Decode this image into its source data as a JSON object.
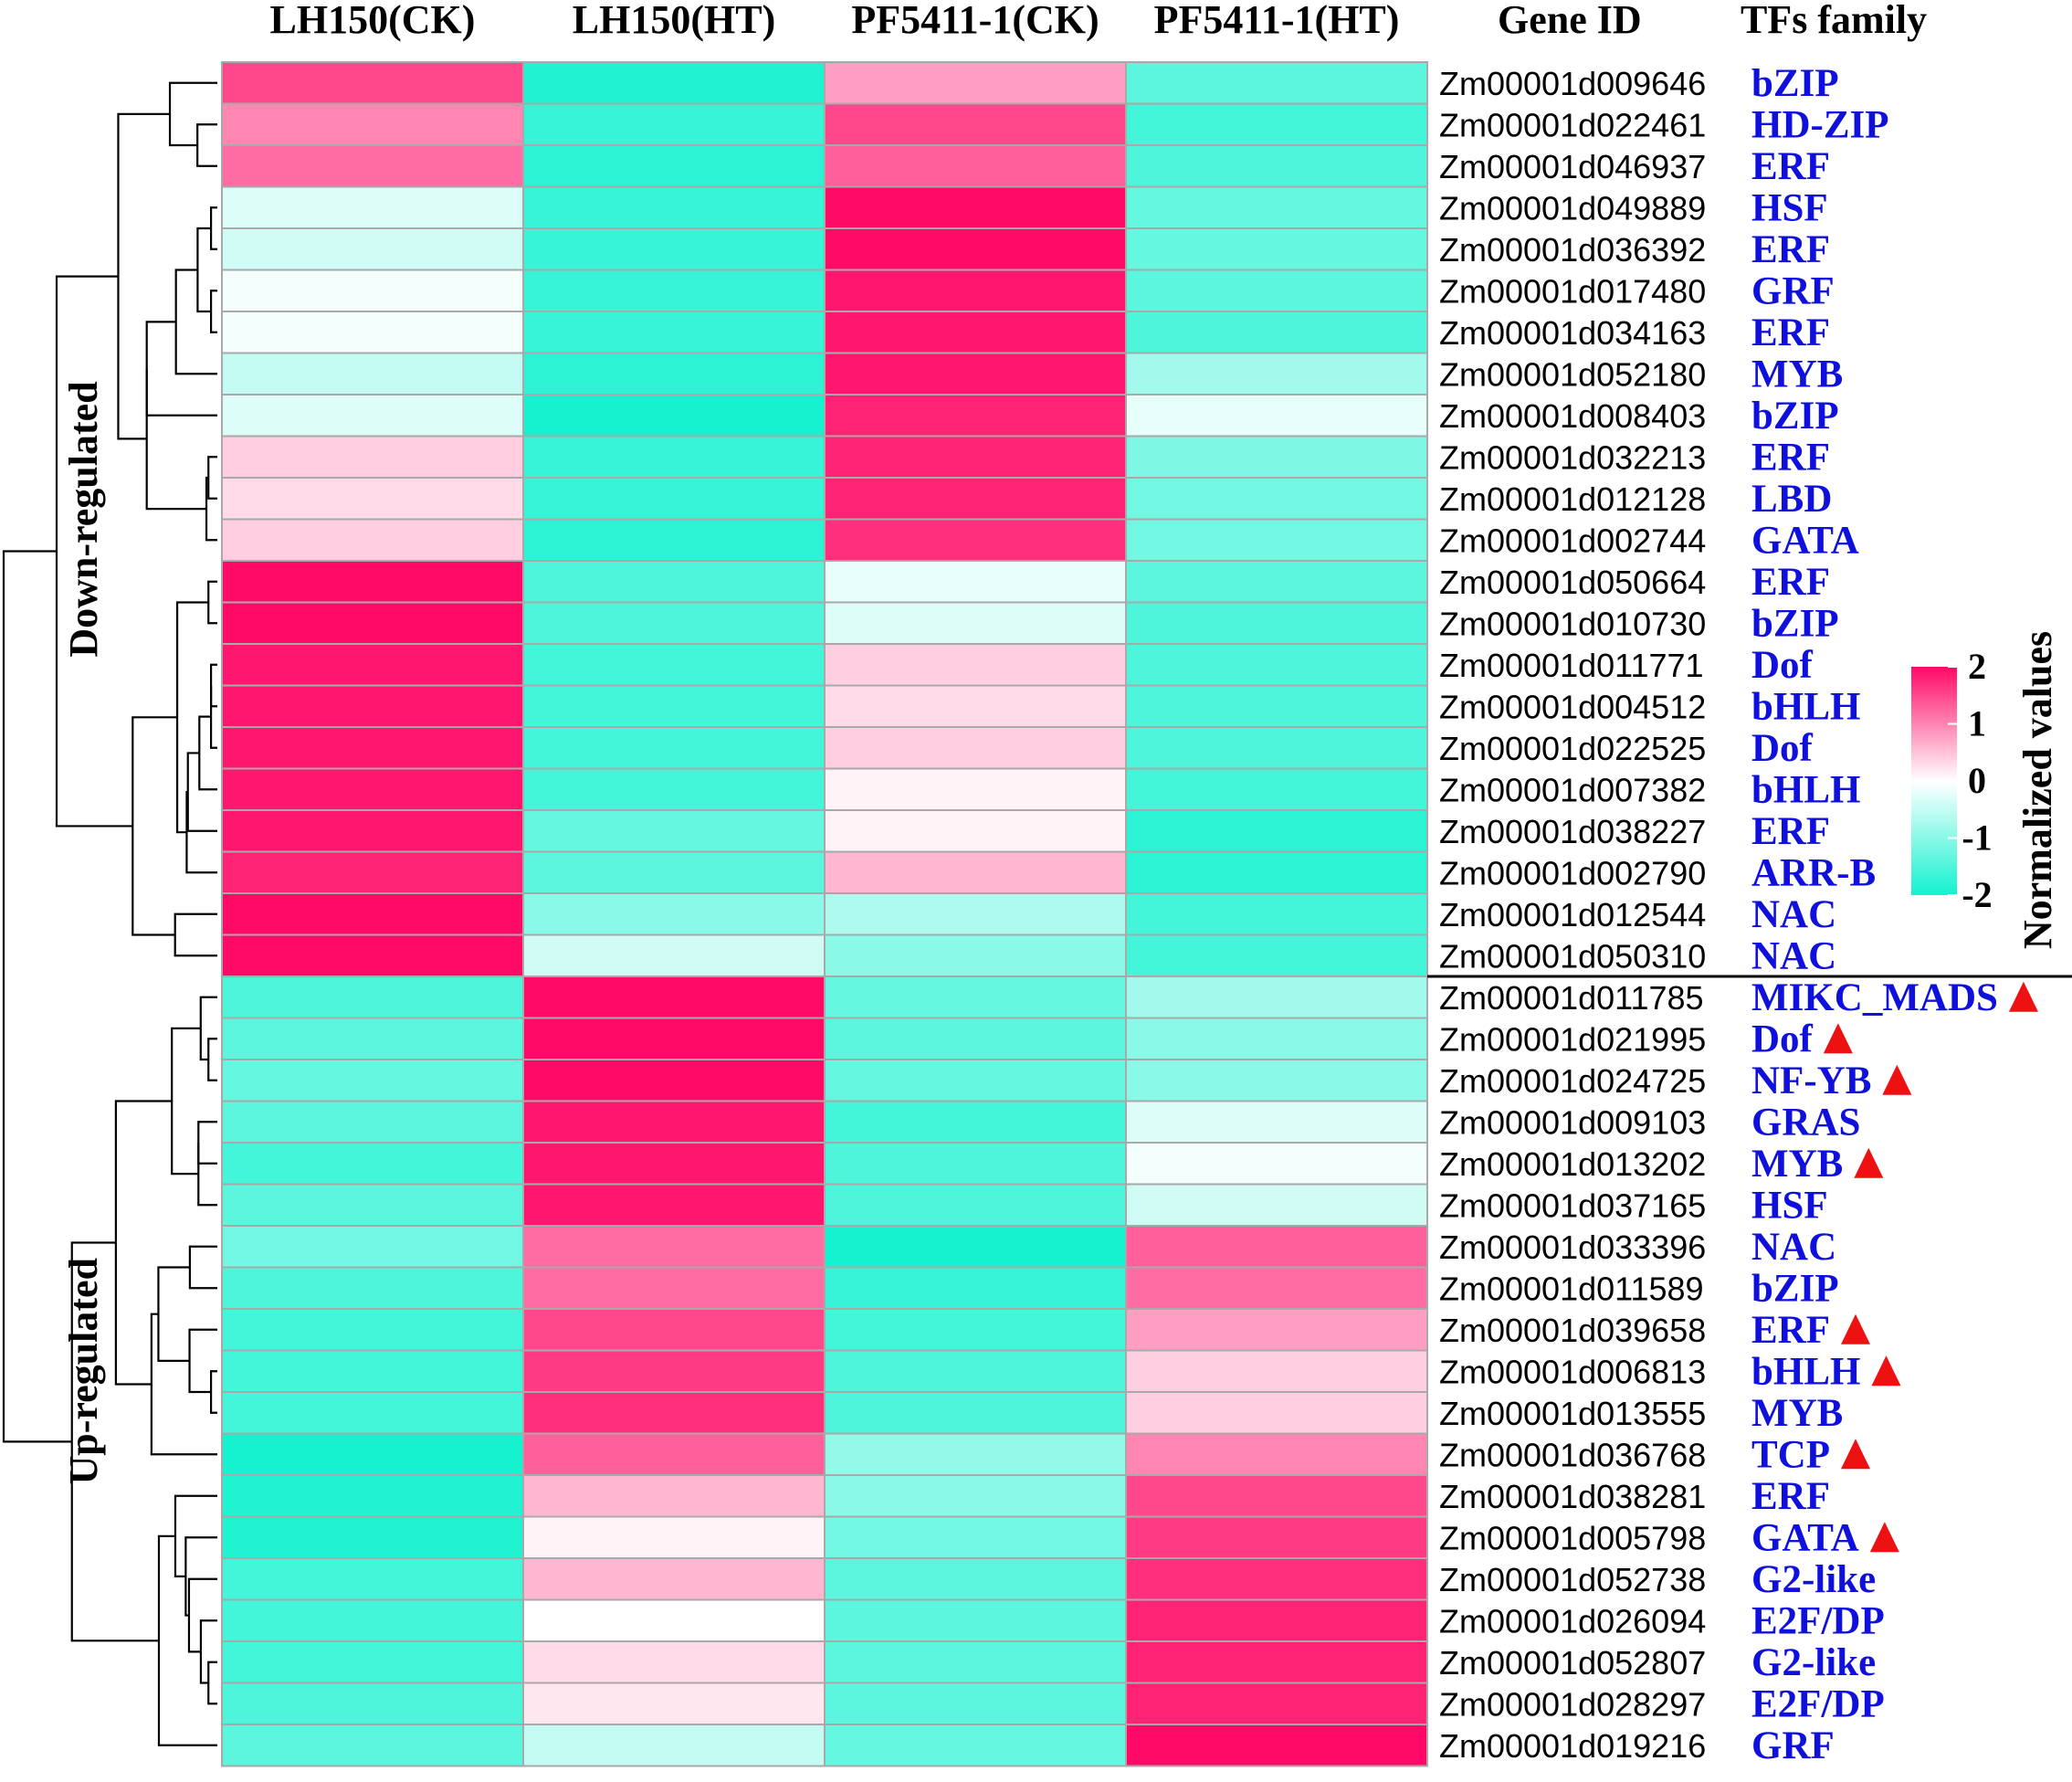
{
  "chart_data": {
    "type": "heatmap",
    "columns": [
      "LH150(CK)",
      "LH150(HT)",
      "PF5411-1(CK)",
      "PF5411-1(HT)"
    ],
    "gene_id_header": "Gene ID",
    "family_header": "TFs family",
    "groups": [
      {
        "label": "Down-regulated",
        "start": 0,
        "end": 21
      },
      {
        "label": "Up-regulated",
        "start": 22,
        "end": 40
      }
    ],
    "rows": [
      {
        "gene": "Zm00001d009646",
        "family": "bZIP",
        "marked": false,
        "values": [
          1.5,
          -1.9,
          0.8,
          -1.4
        ]
      },
      {
        "gene": "Zm00001d022461",
        "family": "HD-ZIP",
        "marked": false,
        "values": [
          1.0,
          -1.7,
          1.5,
          -1.6
        ]
      },
      {
        "gene": "Zm00001d046937",
        "family": "ERF",
        "marked": false,
        "values": [
          1.2,
          -1.8,
          1.3,
          -1.5
        ]
      },
      {
        "gene": "Zm00001d049889",
        "family": "HSF",
        "marked": false,
        "values": [
          -0.3,
          -1.7,
          2.0,
          -1.3
        ]
      },
      {
        "gene": "Zm00001d036392",
        "family": "ERF",
        "marked": false,
        "values": [
          -0.4,
          -1.7,
          2.0,
          -1.3
        ]
      },
      {
        "gene": "Zm00001d017480",
        "family": "GRF",
        "marked": false,
        "values": [
          -0.1,
          -1.7,
          1.9,
          -1.4
        ]
      },
      {
        "gene": "Zm00001d034163",
        "family": "ERF",
        "marked": false,
        "values": [
          -0.1,
          -1.7,
          1.9,
          -1.5
        ]
      },
      {
        "gene": "Zm00001d052180",
        "family": "MYB",
        "marked": false,
        "values": [
          -0.5,
          -1.8,
          1.9,
          -0.8
        ]
      },
      {
        "gene": "Zm00001d008403",
        "family": "bZIP",
        "marked": false,
        "values": [
          -0.3,
          -2.0,
          1.8,
          -0.2
        ]
      },
      {
        "gene": "Zm00001d032213",
        "family": "ERF",
        "marked": false,
        "values": [
          0.4,
          -1.7,
          1.8,
          -1.1
        ]
      },
      {
        "gene": "Zm00001d012128",
        "family": "LBD",
        "marked": false,
        "values": [
          0.3,
          -1.7,
          1.8,
          -1.2
        ]
      },
      {
        "gene": "Zm00001d002744",
        "family": "GATA",
        "marked": false,
        "values": [
          0.4,
          -1.8,
          1.7,
          -1.2
        ]
      },
      {
        "gene": "Zm00001d050664",
        "family": "ERF",
        "marked": false,
        "values": [
          2.0,
          -1.5,
          -0.2,
          -1.4
        ]
      },
      {
        "gene": "Zm00001d010730",
        "family": "bZIP",
        "marked": false,
        "values": [
          2.0,
          -1.5,
          -0.3,
          -1.5
        ]
      },
      {
        "gene": "Zm00001d011771",
        "family": "Dof",
        "marked": false,
        "values": [
          1.9,
          -1.6,
          0.4,
          -1.5
        ]
      },
      {
        "gene": "Zm00001d004512",
        "family": "bHLH",
        "marked": false,
        "values": [
          1.9,
          -1.6,
          0.3,
          -1.5
        ]
      },
      {
        "gene": "Zm00001d022525",
        "family": "Dof",
        "marked": false,
        "values": [
          1.9,
          -1.6,
          0.4,
          -1.5
        ]
      },
      {
        "gene": "Zm00001d007382",
        "family": "bHLH",
        "marked": false,
        "values": [
          1.9,
          -1.6,
          0.1,
          -1.6
        ]
      },
      {
        "gene": "Zm00001d038227",
        "family": "ERF",
        "marked": false,
        "values": [
          1.9,
          -1.3,
          0.1,
          -1.8
        ]
      },
      {
        "gene": "Zm00001d002790",
        "family": "ARR-B",
        "marked": false,
        "values": [
          1.8,
          -1.4,
          0.6,
          -1.8
        ]
      },
      {
        "gene": "Zm00001d012544",
        "family": "NAC",
        "marked": false,
        "values": [
          2.0,
          -1.0,
          -0.7,
          -1.6
        ]
      },
      {
        "gene": "Zm00001d050310",
        "family": "NAC",
        "marked": false,
        "values": [
          2.0,
          -0.4,
          -1.0,
          -1.6
        ]
      },
      {
        "gene": "Zm00001d011785",
        "family": "MIKC_MADS",
        "marked": true,
        "values": [
          -1.5,
          2.0,
          -1.3,
          -0.8
        ]
      },
      {
        "gene": "Zm00001d021995",
        "family": "Dof",
        "marked": true,
        "values": [
          -1.4,
          2.0,
          -1.4,
          -1.0
        ]
      },
      {
        "gene": "Zm00001d024725",
        "family": "NF-YB",
        "marked": true,
        "values": [
          -1.3,
          2.0,
          -1.3,
          -1.0
        ]
      },
      {
        "gene": "Zm00001d009103",
        "family": "GRAS",
        "marked": false,
        "values": [
          -1.4,
          1.9,
          -1.6,
          -0.3
        ]
      },
      {
        "gene": "Zm00001d013202",
        "family": "MYB",
        "marked": true,
        "values": [
          -1.6,
          1.9,
          -1.5,
          -0.1
        ]
      },
      {
        "gene": "Zm00001d037165",
        "family": "HSF",
        "marked": false,
        "values": [
          -1.4,
          1.9,
          -1.5,
          -0.4
        ]
      },
      {
        "gene": "Zm00001d033396",
        "family": "NAC",
        "marked": false,
        "values": [
          -1.2,
          1.2,
          -2.0,
          1.3
        ]
      },
      {
        "gene": "Zm00001d011589",
        "family": "bZIP",
        "marked": false,
        "values": [
          -1.5,
          1.2,
          -1.7,
          1.2
        ]
      },
      {
        "gene": "Zm00001d039658",
        "family": "ERF",
        "marked": true,
        "values": [
          -1.6,
          1.5,
          -1.6,
          0.8
        ]
      },
      {
        "gene": "Zm00001d006813",
        "family": "bHLH",
        "marked": true,
        "values": [
          -1.6,
          1.6,
          -1.5,
          0.4
        ]
      },
      {
        "gene": "Zm00001d013555",
        "family": "MYB",
        "marked": false,
        "values": [
          -1.6,
          1.7,
          -1.5,
          0.4
        ]
      },
      {
        "gene": "Zm00001d036768",
        "family": "TCP",
        "marked": true,
        "values": [
          -2.0,
          1.3,
          -0.9,
          1.0
        ]
      },
      {
        "gene": "Zm00001d038281",
        "family": "ERF",
        "marked": false,
        "values": [
          -1.9,
          0.6,
          -1.0,
          1.5
        ]
      },
      {
        "gene": "Zm00001d005798",
        "family": "GATA",
        "marked": true,
        "values": [
          -1.9,
          0.1,
          -1.2,
          1.6
        ]
      },
      {
        "gene": "Zm00001d052738",
        "family": "G2-like",
        "marked": false,
        "values": [
          -1.6,
          0.6,
          -1.4,
          1.7
        ]
      },
      {
        "gene": "Zm00001d026094",
        "family": "E2F/DP",
        "marked": false,
        "values": [
          -1.6,
          0.0,
          -1.4,
          1.8
        ]
      },
      {
        "gene": "Zm00001d052807",
        "family": "G2-like",
        "marked": false,
        "values": [
          -1.6,
          0.3,
          -1.4,
          1.8
        ]
      },
      {
        "gene": "Zm00001d028297",
        "family": "E2F/DP",
        "marked": false,
        "values": [
          -1.5,
          0.2,
          -1.4,
          1.8
        ]
      },
      {
        "gene": "Zm00001d019216",
        "family": "GRF",
        "marked": false,
        "values": [
          -1.4,
          -0.5,
          -1.3,
          2.0
        ]
      }
    ],
    "legend": {
      "title": "Normalized values",
      "ticks": [
        2,
        1,
        0,
        -1,
        -2
      ],
      "range": [
        -2,
        2
      ],
      "colors": {
        "high": "#ff0a66",
        "mid": "#ffffff",
        "low": "#14f2cf"
      }
    },
    "marker_color": "#ee1111",
    "family_color": "#1010dd",
    "cell_border_color": "#a9a9a9"
  }
}
